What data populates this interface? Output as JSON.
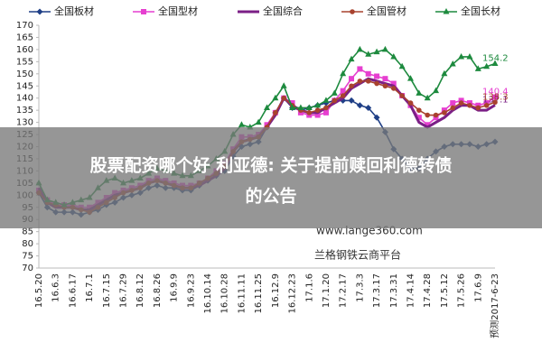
{
  "chart_data": {
    "type": "line",
    "categories": [
      "16.5.20",
      null,
      "16.6.3",
      null,
      "16.6.17",
      null,
      "16.7.1",
      null,
      "16.7.15",
      null,
      "16.7.29",
      null,
      "16.8.12",
      null,
      "16.8.26",
      null,
      "16.9.9",
      null,
      "16.9.23",
      null,
      "16.10.14",
      null,
      "16.10.28",
      null,
      "16.11.11",
      null,
      "16.11.25",
      null,
      "16.12.9",
      null,
      "16.12.23",
      null,
      "17.1.6",
      null,
      "17.1.20",
      null,
      "17.2.17",
      null,
      "17.3.3",
      null,
      "17.3.17",
      null,
      "17.3.31",
      null,
      "17.4.14",
      null,
      "17.4.28",
      null,
      "17.5.12",
      null,
      "17.5.26",
      null,
      "17.6.9",
      null,
      "预测2017-6-23"
    ],
    "series": [
      {
        "name": "全国板材",
        "color": "#1f3f86",
        "marker": "diamond",
        "label_last": false,
        "values": [
          101,
          95,
          93,
          93,
          93,
          92,
          93,
          94,
          96,
          97,
          99,
          100,
          101,
          103,
          104,
          103,
          103,
          102,
          102,
          104,
          106,
          108,
          110,
          116,
          120,
          121,
          122,
          128,
          134,
          140,
          136,
          135,
          136,
          137,
          138,
          139,
          139,
          139,
          137,
          136,
          132,
          126,
          119,
          115,
          111,
          111,
          115,
          118,
          120,
          121,
          121,
          121,
          120,
          121,
          122
        ]
      },
      {
        "name": "全国型材",
        "color": "#e63fd0",
        "marker": "square",
        "label_last": true,
        "values": [
          102,
          98,
          96,
          96,
          96,
          95,
          95,
          97,
          99,
          101,
          102,
          103,
          104,
          106,
          107,
          106,
          105,
          104,
          104,
          105,
          107,
          110,
          113,
          119,
          124,
          124,
          125,
          129,
          134,
          140,
          138,
          134,
          133,
          133,
          134,
          139,
          143,
          148,
          152,
          150,
          149,
          148,
          146,
          141,
          137,
          132,
          129,
          132,
          135,
          138,
          139,
          138,
          137,
          138,
          140.4
        ]
      },
      {
        "name": "全国综合",
        "color": "#7b1f86",
        "marker": "none",
        "label_last": true,
        "values": [
          103,
          97,
          95,
          95,
          95,
          94,
          94,
          96,
          98,
          100,
          101,
          102,
          103,
          105,
          106,
          105,
          104,
          103,
          103,
          104,
          106,
          108,
          111,
          118,
          122,
          123,
          124,
          128,
          133,
          140,
          137,
          135,
          134,
          134,
          136,
          138,
          140,
          144,
          146,
          148,
          147,
          146,
          145,
          141,
          137,
          130,
          128,
          130,
          132,
          135,
          137,
          137,
          135,
          135,
          137.1
        ]
      },
      {
        "name": "全国管材",
        "color": "#a8422e",
        "marker": "circle",
        "label_last": true,
        "values": [
          101,
          97,
          96,
          95,
          95,
          94,
          93,
          95,
          97,
          99,
          101,
          102,
          103,
          105,
          106,
          105,
          104,
          103,
          103,
          105,
          107,
          109,
          112,
          118,
          122,
          123,
          124,
          128,
          134,
          140,
          137,
          135,
          134,
          135,
          136,
          139,
          141,
          145,
          147,
          147,
          146,
          145,
          144,
          141,
          138,
          135,
          133,
          133,
          134,
          136,
          138,
          137,
          136,
          137,
          138.3
        ]
      },
      {
        "name": "全国长材",
        "color": "#1d8a3e",
        "marker": "triangle",
        "label_last": true,
        "values": [
          105,
          98,
          97,
          96,
          97,
          98,
          99,
          103,
          106,
          107,
          105,
          106,
          107,
          109,
          111,
          110,
          109,
          108,
          108,
          110,
          112,
          115,
          118,
          125,
          129,
          128,
          130,
          136,
          140,
          145,
          136,
          136,
          136,
          137,
          139,
          142,
          150,
          156,
          160,
          158,
          159,
          160,
          157,
          153,
          148,
          142,
          140,
          143,
          150,
          154,
          157,
          157,
          152,
          153,
          154.2
        ]
      }
    ],
    "ylim": [
      70,
      170
    ],
    "yticks": [
      70,
      75,
      80,
      85,
      90,
      95,
      100,
      105,
      110,
      115,
      120,
      125,
      130,
      135,
      140,
      145,
      150,
      155,
      160,
      165,
      170
    ],
    "grid": false
  },
  "watermark": {
    "site": "www.lange360.com",
    "platform": "兰格钢铁云商平台"
  },
  "banner": {
    "line1": "股票配资哪个好 利亚德: 关于提前赎回利德转债",
    "line2": "的公告"
  }
}
